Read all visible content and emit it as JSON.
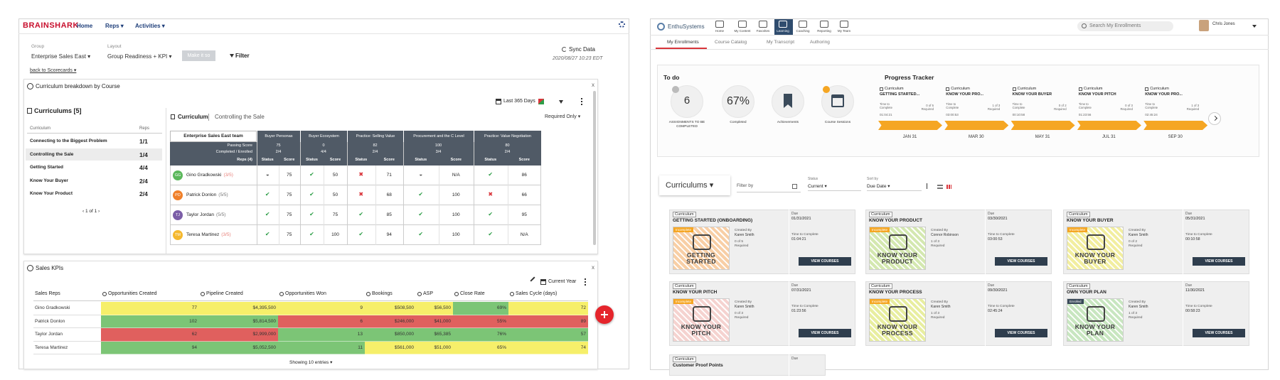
{
  "left": {
    "brand": "BRAINSHARK",
    "nav": [
      "Home",
      "Reps ▾",
      "Activities ▾"
    ],
    "group_label": "Group",
    "group": "Enterprise Sales East ▾",
    "layout_label": "Layout",
    "layout": "Group Readiness + KPI ▾",
    "button": "Make it so",
    "filter": "Filter",
    "sync": "Sync Data",
    "sync_time": "2020/08/27 10:23 EDT",
    "back": "back to Scorecards ▾",
    "breakdown": {
      "title": "Curriculum breakdown by Course",
      "close": "x",
      "list_title": "Curriculums [5]",
      "list_headers": [
        "Curriculum",
        "Reps"
      ],
      "list": [
        {
          "name": "Connecting to the Biggest Problem",
          "reps": "1/1"
        },
        {
          "name": "Controlling the Sale",
          "reps": "1/4"
        },
        {
          "name": "Getting Started",
          "reps": "4/4"
        },
        {
          "name": "Know Your Buyer",
          "reps": "2/4"
        },
        {
          "name": "Know Your Product",
          "reps": "2/4"
        }
      ],
      "pager": "‹ 1 of 1 ›",
      "range": "Last 365 Days",
      "required": "Required Only ▾",
      "crumb": [
        "Curriculum",
        "Controlling the Sale"
      ],
      "team": "Enterprise Sales East team",
      "row_heads": [
        "Passing Score",
        "Completed / Enrolled",
        "Reps (4)"
      ],
      "sub_heads": [
        "Status",
        "Score"
      ],
      "courses": [
        {
          "name": "Buyer Personas",
          "passing": "75",
          "completed": "2/4"
        },
        {
          "name": "Buyer Ecosystem",
          "passing": "0",
          "completed": "4/4"
        },
        {
          "name": "Practice: Selling Value",
          "passing": "82",
          "completed": "2/4"
        },
        {
          "name": "Procurement and the C Level",
          "passing": "100",
          "completed": "3/4"
        },
        {
          "name": "Practice: Value Negotiation",
          "passing": "80",
          "completed": "2/4"
        }
      ],
      "status_colors": {
        "◒": "#555555",
        "✔": "#2e9e48",
        "✖": "#d9343a"
      },
      "reps": [
        {
          "initials": "GG",
          "color": "#5cb85c",
          "name": "Gino Gradkowski",
          "progress": "(3/5)",
          "progress_color": "#e8807a",
          "cells": [
            "◒",
            "75",
            "✔",
            "50",
            "✖",
            "71",
            "◒",
            "N/A",
            "✔",
            "86"
          ]
        },
        {
          "initials": "PD",
          "color": "#f0802a",
          "name": "Patrick Donlon",
          "progress": "(5/5)",
          "progress_color": "#777777",
          "cells": [
            "✔",
            "75",
            "✔",
            "50",
            "✖",
            "68",
            "✔",
            "100",
            "✖",
            "66"
          ]
        },
        {
          "initials": "TJ",
          "color": "#7b5ea7",
          "name": "Taylor Jordan",
          "progress": "(5/5)",
          "progress_color": "#777777",
          "cells": [
            "✔",
            "75",
            "✔",
            "75",
            "✔",
            "85",
            "✔",
            "100",
            "✔",
            "95"
          ]
        },
        {
          "initials": "TM",
          "color": "#f5b82e",
          "name": "Teresa Martinez",
          "progress": "(3/5)",
          "progress_color": "#e8807a",
          "cells": [
            "✔",
            "75",
            "✔",
            "100",
            "✔",
            "94",
            "✔",
            "100",
            "✔",
            "N/A"
          ]
        }
      ]
    },
    "kpi": {
      "title": "Sales KPIs",
      "close": "x",
      "period": "Current Year",
      "headers": [
        "Sales Reps",
        "Opportunities Created",
        "Pipeline Created",
        "Opportunities Won",
        "Bookings",
        "ASP",
        "Close Rate",
        "Sales Cycle (days)"
      ],
      "rows": [
        {
          "cells": [
            "Gino Gradkowski",
            "77",
            "$4,395,500",
            "9",
            "$508,500",
            "$56,500",
            "69%",
            "72"
          ],
          "colors": [
            "#f6ef6a",
            "#f6ef6a",
            "#f6ef6a",
            "#f6ef6a",
            "#f6ef6a",
            "#7cc576",
            "#f6ef6a"
          ]
        },
        {
          "cells": [
            "Patrick Donlon",
            "102",
            "$5,814,500",
            "6",
            "$246,000",
            "$41,000",
            "55%",
            "89"
          ],
          "colors": [
            "#7cc576",
            "#7cc576",
            "#e0605e",
            "#e0605e",
            "#e0605e",
            "#e0605e",
            "#e0605e"
          ]
        },
        {
          "cells": [
            "Taylor Jordan",
            "62",
            "$2,999,000",
            "13",
            "$850,000",
            "$65,385",
            "76%",
            "57"
          ],
          "colors": [
            "#e0605e",
            "#e0605e",
            "#7cc576",
            "#7cc576",
            "#7cc576",
            "#7cc576",
            "#7cc576"
          ]
        },
        {
          "cells": [
            "Teresa Martinez",
            "94",
            "$5,052,500",
            "11",
            "$561,000",
            "$51,000",
            "65%",
            "74"
          ],
          "colors": [
            "#7cc576",
            "#7cc576",
            "#7cc576",
            "#f6ef6a",
            "#f6ef6a",
            "#f6ef6a",
            "#f6ef6a"
          ]
        }
      ],
      "footer": "Showing 10 entries ▾"
    }
  },
  "right": {
    "brand": "EnthuSystems",
    "nav": [
      "Home",
      "My Content",
      "Favorites",
      "Learning",
      "Coaching",
      "Reporting",
      "My Team"
    ],
    "search": "Search My Enrollments",
    "user": "Chris Jones",
    "tabs": [
      "My Enrollments",
      "Course Catalog",
      "My Transcript",
      "Authoring"
    ],
    "todo": {
      "title": "To do",
      "stats": [
        {
          "value": "6",
          "label": "ASSIGNMENTS TO BE COMPLETED"
        },
        {
          "value": "67%",
          "label": "Completed"
        },
        {
          "label": "Achievements"
        },
        {
          "label": "Course Sessions"
        }
      ]
    },
    "tracker": {
      "title": "Progress Tracker",
      "tag": "Curriculum",
      "time_label": "Time to Complete",
      "items": [
        {
          "title": "GETTING STARTED...",
          "required": "0 of 5 Required",
          "time": "01:04:21",
          "date": "JAN 31"
        },
        {
          "title": "KNOW YOUR PRO...",
          "required": "1 of 3 Required",
          "time": "03:00:53",
          "date": "MAR 30"
        },
        {
          "title": "KNOW YOUR BUYER",
          "required": "0 of 2 Required",
          "time": "00:10:58",
          "date": "MAY 31"
        },
        {
          "title": "KNOW YOUR PITCH",
          "required": "0 of 3 Required",
          "time": "01:23:56",
          "date": "JUL 31"
        },
        {
          "title": "KNOW YOUR PRO...",
          "required": "1 of 3 Required",
          "time": "02:45:24",
          "date": "SEP 30"
        }
      ]
    },
    "toolbar": {
      "view": "Curriculums ▾",
      "filter": "Filter by",
      "status_label": "Status",
      "status": "Current ▾",
      "sort_label": "Sort by",
      "sort": "Due Date ▾"
    },
    "cards": {
      "tag": "Curriculum",
      "due_label": "Due",
      "created_label": "Created By",
      "time_label": "Time to Complete",
      "button": "VIEW COURSES",
      "items": [
        {
          "title": "GETTING STARTED (ONBOARDING)",
          "due": "01/31/2021",
          "author": "Karen Smith",
          "required": "0 of 5 Required",
          "time": "01:04:21",
          "image": "GETTING STARTED",
          "badge": "Incomplete",
          "badge_color": "#f5a623",
          "color": "#f8cfa6"
        },
        {
          "title": "KNOW YOUR PRODUCT",
          "due": "03/30/2021",
          "author": "Connor Robinson",
          "required": "1 of 3 Required",
          "time": "03:00:53",
          "image": "KNOW YOUR PRODUCT",
          "badge": "Incomplete",
          "badge_color": "#f5a623",
          "color": "#d4e8b0"
        },
        {
          "title": "KNOW YOUR BUYER",
          "due": "05/31/2021",
          "author": "Karen Smith",
          "required": "0 of 2 Required",
          "time": "00:10:58",
          "image": "KNOW YOUR BUYER",
          "badge": "Incomplete",
          "badge_color": "#f5a623",
          "color": "#f2eea0"
        },
        {
          "title": "KNOW YOUR PITCH",
          "due": "07/31/2021",
          "author": "Karen Smith",
          "required": "0 of 3 Required",
          "time": "01:23:56",
          "image": "KNOW YOUR PITCH",
          "badge": "Incomplete",
          "badge_color": "#f5a623",
          "color": "#f5d3d0"
        },
        {
          "title": "KNOW YOUR PROCESS",
          "due": "09/30/2021",
          "author": "Karen Smith",
          "required": "1 of 3 Required",
          "time": "02:45:24",
          "image": "KNOW YOUR PROCESS",
          "badge": "Incomplete",
          "badge_color": "#f5a623",
          "color": "#e8eea0"
        },
        {
          "title": "OWN YOUR PLAN",
          "due": "11/30/2021",
          "author": "Karen Smith",
          "required": "1 of 3 Required",
          "time": "00:58:23",
          "image": "KNOW YOUR PLAN",
          "badge": "Enrolled",
          "badge_color": "#3a4a5a",
          "color": "#c8e6c0"
        },
        {
          "title": "Customer Proof Points"
        }
      ]
    }
  }
}
